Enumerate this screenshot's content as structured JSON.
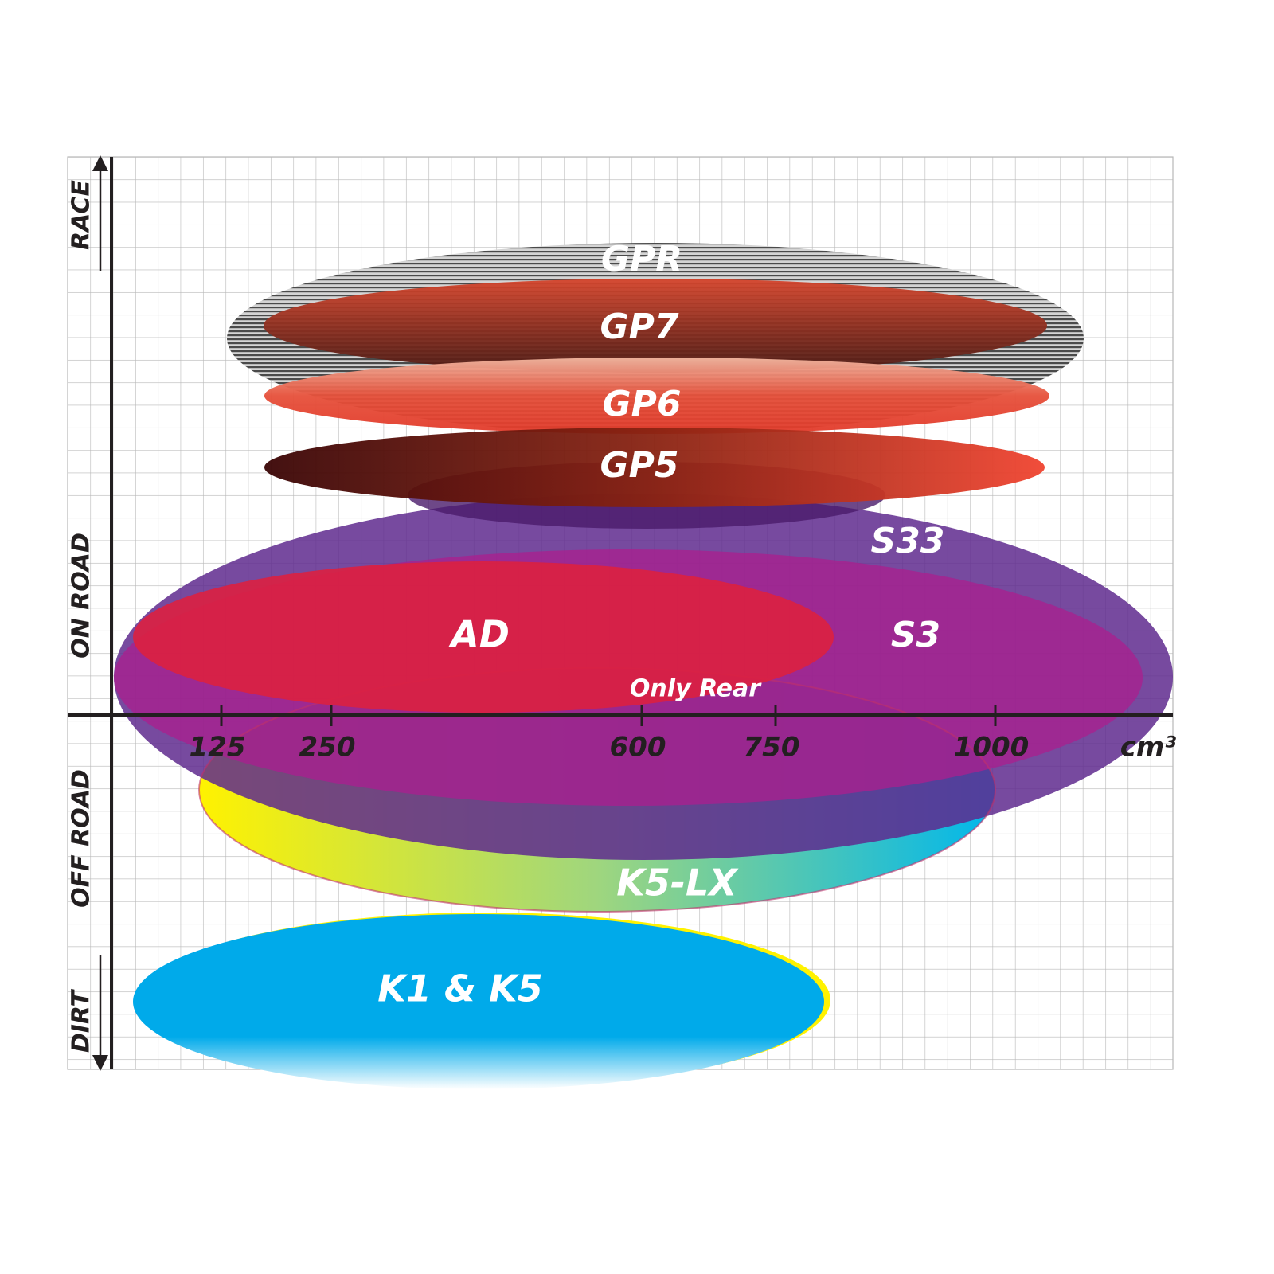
{
  "chart_data": {
    "type": "diagram",
    "xlabel": "cm³",
    "x_ticks": [
      "125",
      "250",
      "600",
      "750",
      "1000"
    ],
    "y_labels": [
      "RACE",
      "ON ROAD",
      "OFF ROAD",
      "DIRT"
    ],
    "grid": true,
    "series": [
      {
        "name": "GPR",
        "color": "#9a9a9a"
      },
      {
        "name": "GP7",
        "color": "#b9432c"
      },
      {
        "name": "GP6",
        "color": "#e2452f"
      },
      {
        "name": "GP5",
        "color": "#8a1a12"
      },
      {
        "name": "S33",
        "color": "#5f2a8e"
      },
      {
        "name": "S3",
        "color": "#9c1f8e"
      },
      {
        "name": "AD",
        "color": "#d8203f"
      },
      {
        "name": "Only Rear",
        "color": "#9a2a78"
      },
      {
        "name": "K5-LX",
        "color": "#1fb8d8"
      },
      {
        "name": "K1 & K5",
        "color": "#00aaea"
      }
    ]
  }
}
